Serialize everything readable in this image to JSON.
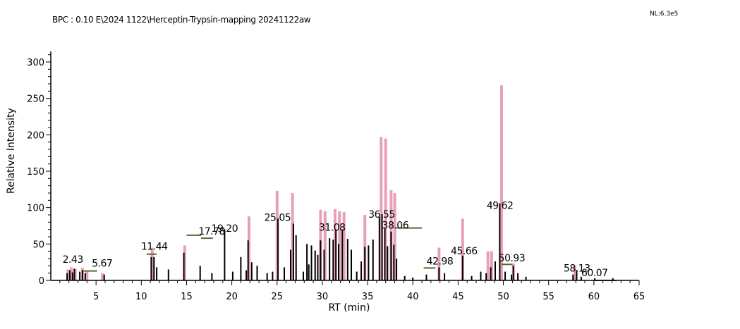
{
  "header": {
    "title": "BPC : 0.10 E\\2024 1122\\Herceptin-Trypsin-mapping 20241122aw",
    "nl": "NL:6.3e5"
  },
  "chart_data": {
    "type": "bar",
    "ylabel": "Relative Intensity",
    "xlabel": "RT (min)",
    "xlim": [
      0,
      65
    ],
    "ylim": [
      0,
      300
    ],
    "xticks": [
      5,
      10,
      15,
      20,
      25,
      30,
      35,
      40,
      45,
      50,
      55,
      60,
      65
    ],
    "yticks": [
      0,
      50,
      100,
      150,
      200,
      250,
      300
    ],
    "colors": {
      "black": "#000000",
      "pink": "#e8a0b8",
      "green": "#556b2f"
    },
    "series": [
      {
        "color": "pink",
        "x": [
          1.9,
          2.3,
          2.7,
          3.5,
          4.0,
          5.7,
          11.2,
          14.8,
          21.9,
          25.0,
          26.7,
          29.8,
          30.3,
          31.4,
          31.9,
          32.4,
          34.7,
          36.5,
          37.0,
          37.6,
          38.0,
          42.9,
          45.5,
          48.3,
          48.7,
          49.8,
          51.1,
          57.9
        ],
        "values": [
          15,
          18,
          16,
          17,
          14,
          10,
          45,
          48,
          88,
          123,
          120,
          97,
          95,
          98,
          95,
          94,
          90,
          197,
          195,
          124,
          120,
          45,
          85,
          40,
          40,
          268,
          23,
          20
        ]
      },
      {
        "color": "black",
        "x": [
          1.8,
          2.1,
          2.4,
          2.6,
          3.2,
          3.5,
          3.8,
          5.9,
          11.1,
          11.4,
          11.7,
          13.0,
          14.7,
          16.5,
          17.8,
          19.2,
          20.1,
          21.0,
          21.6,
          21.8,
          22.2,
          22.8,
          23.9,
          24.5,
          25.1,
          25.8,
          26.5,
          26.8,
          27.1,
          27.9,
          28.3,
          28.5,
          28.8,
          29.2,
          29.5,
          29.8,
          30.2,
          30.8,
          31.2,
          31.5,
          31.8,
          32.2,
          32.8,
          33.2,
          33.8,
          34.3,
          34.7,
          35.1,
          35.6,
          36.3,
          36.6,
          36.9,
          37.2,
          37.6,
          37.9,
          38.2,
          39.1,
          40.0,
          41.5,
          42.9,
          43.5,
          45.5,
          46.5,
          47.5,
          48.1,
          48.6,
          49.1,
          49.6,
          50.2,
          50.9,
          51.1,
          51.6,
          52.5,
          57.7,
          58.1,
          58.6,
          60.1,
          62.1
        ],
        "values": [
          10,
          14,
          11,
          16,
          12,
          14,
          10,
          8,
          32,
          32,
          18,
          15,
          38,
          20,
          10,
          70,
          12,
          32,
          14,
          55,
          25,
          20,
          10,
          12,
          85,
          18,
          42,
          78,
          62,
          12,
          50,
          22,
          48,
          41,
          35,
          55,
          42,
          58,
          56,
          70,
          50,
          70,
          57,
          42,
          12,
          26,
          46,
          48,
          56,
          87,
          91,
          71,
          47,
          67,
          49,
          30,
          6,
          4,
          8,
          18,
          10,
          34,
          6,
          12,
          10,
          18,
          26,
          106,
          12,
          8,
          20,
          10,
          5,
          8,
          14,
          5,
          3,
          3
        ]
      }
    ],
    "annotations": [
      {
        "label": "2.43",
        "x": 2.43,
        "y": 24
      },
      {
        "label": "5.67",
        "x": 5.67,
        "y": 19
      },
      {
        "label": "11.44",
        "x": 11.44,
        "y": 42
      },
      {
        "label": "17.78",
        "x": 17.78,
        "y": 63
      },
      {
        "label": "19.20",
        "x": 19.2,
        "y": 67
      },
      {
        "label": "25.05",
        "x": 25.05,
        "y": 82
      },
      {
        "label": "31.08",
        "x": 31.08,
        "y": 68
      },
      {
        "label": "36.55",
        "x": 36.55,
        "y": 86
      },
      {
        "label": "38.06",
        "x": 38.06,
        "y": 71
      },
      {
        "label": "42.98",
        "x": 42.98,
        "y": 22
      },
      {
        "label": "45.66",
        "x": 45.66,
        "y": 36
      },
      {
        "label": "49.62",
        "x": 49.62,
        "y": 98
      },
      {
        "label": "50.93",
        "x": 50.93,
        "y": 26
      },
      {
        "label": "58.13",
        "x": 58.13,
        "y": 12
      },
      {
        "label": "60.07",
        "x": 60.07,
        "y": 6
      }
    ],
    "baselines": [
      {
        "x1": 10.6,
        "x2": 11.7,
        "y": 36
      },
      {
        "x1": 15.0,
        "x2": 16.6,
        "y": 62
      },
      {
        "x1": 16.6,
        "x2": 17.9,
        "y": 58
      },
      {
        "x1": 38.2,
        "x2": 41.0,
        "y": 72
      },
      {
        "x1": 41.2,
        "x2": 42.5,
        "y": 17
      },
      {
        "x1": 49.8,
        "x2": 51.0,
        "y": 22
      },
      {
        "x1": 60.0,
        "x2": 62.5,
        "y": 0
      },
      {
        "x1": 3.6,
        "x2": 5.1,
        "y": 13
      }
    ]
  }
}
